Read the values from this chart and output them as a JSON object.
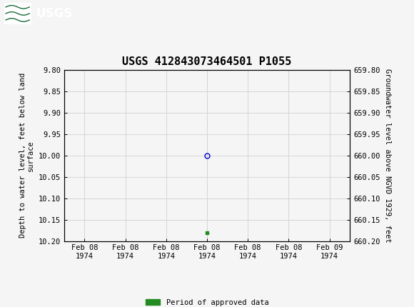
{
  "title": "USGS 412843073464501 P1055",
  "left_ylabel": "Depth to water level, feet below land\nsurface",
  "right_ylabel": "Groundwater level above NGVD 1929, feet",
  "ylim_left": [
    9.8,
    10.2
  ],
  "ylim_right": [
    659.8,
    660.2
  ],
  "left_yticks": [
    9.8,
    9.85,
    9.9,
    9.95,
    10.0,
    10.05,
    10.1,
    10.15,
    10.2
  ],
  "right_yticks": [
    660.2,
    660.15,
    660.1,
    660.05,
    660.0,
    659.95,
    659.9,
    659.85,
    659.8
  ],
  "data_point_x": 0.0,
  "data_point_y_depth": 10.0,
  "data_point_color": "#0000cc",
  "green_square_x": 0.0,
  "green_square_y": 10.18,
  "green_color": "#228B22",
  "header_bg_color": "#1a6b3c",
  "header_text_color": "#ffffff",
  "background_color": "#f5f5f5",
  "grid_color": "#d0d0d0",
  "legend_label": "Period of approved data",
  "font_family": "monospace",
  "title_fontsize": 11,
  "axis_label_fontsize": 7.5,
  "tick_fontsize": 7.5,
  "xtick_labels": [
    "Feb 08\n1974",
    "Feb 08\n1974",
    "Feb 08\n1974",
    "Feb 08\n1974",
    "Feb 08\n1974",
    "Feb 08\n1974",
    "Feb 09\n1974"
  ],
  "xtick_positions": [
    -3,
    -2,
    -1,
    0,
    1,
    2,
    3
  ],
  "xlim": [
    -3.5,
    3.5
  ]
}
